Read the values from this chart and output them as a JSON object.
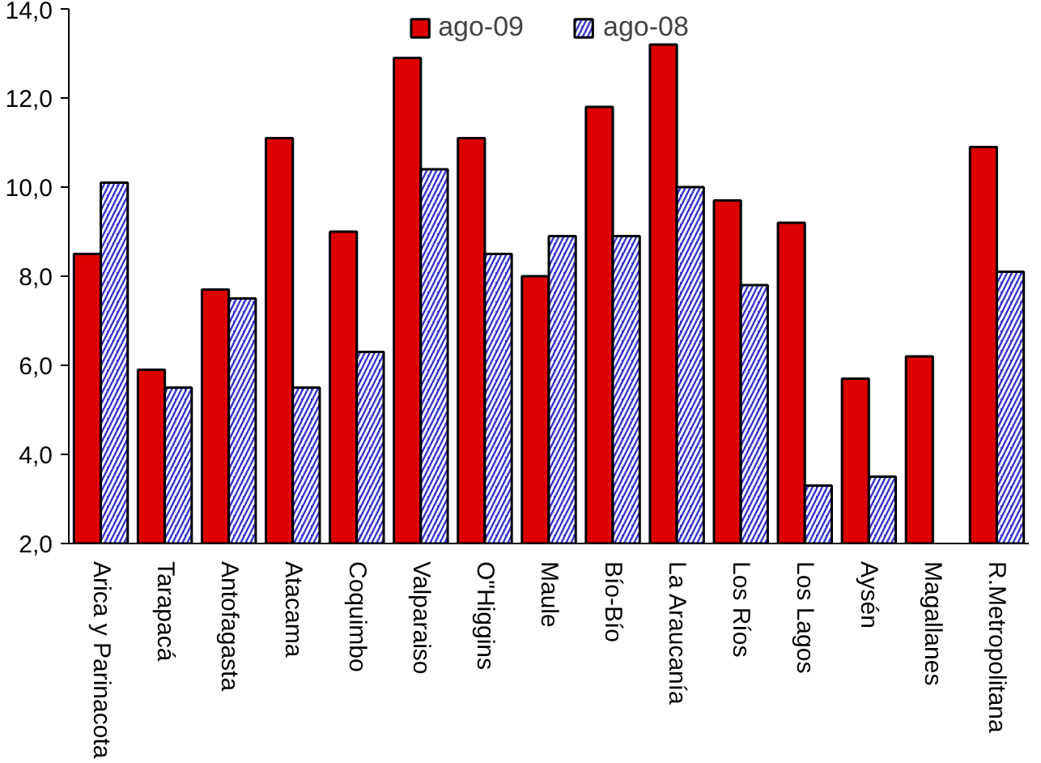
{
  "chart_data": {
    "type": "bar",
    "categories": [
      "Arica y Parinacota",
      "Tarapacá",
      "Antofagasta",
      "Atacama",
      "Coquimbo",
      "Valparaiso",
      "O\"Higgins",
      "Maule",
      "Bío-Bío",
      "La Araucanía",
      "Los Ríos",
      "Los Lagos",
      "Aysén",
      "Magallanes",
      "R.Metropolitana"
    ],
    "series": [
      {
        "name": "ago-09",
        "color": "#dd0000",
        "values": [
          8.5,
          5.9,
          7.7,
          11.1,
          9.0,
          12.9,
          11.1,
          8.0,
          11.8,
          13.2,
          9.7,
          9.2,
          5.7,
          6.2,
          10.9
        ]
      },
      {
        "name": "ago-08",
        "color": "#3333cc",
        "values": [
          10.1,
          5.5,
          7.5,
          5.5,
          6.3,
          10.4,
          8.5,
          8.9,
          8.9,
          10.0,
          7.8,
          3.3,
          3.5,
          null,
          8.1
        ]
      }
    ],
    "ylim": [
      2,
      14
    ],
    "yticks": [
      {
        "value": 2,
        "label": "2,0"
      },
      {
        "value": 4,
        "label": "4,0"
      },
      {
        "value": 6,
        "label": "6,0"
      },
      {
        "value": 8,
        "label": "8,0"
      },
      {
        "value": 10,
        "label": "10,0"
      },
      {
        "value": 12,
        "label": "12,0"
      },
      {
        "value": 14,
        "label": "14,0"
      }
    ],
    "grid": false,
    "legend": "top"
  }
}
